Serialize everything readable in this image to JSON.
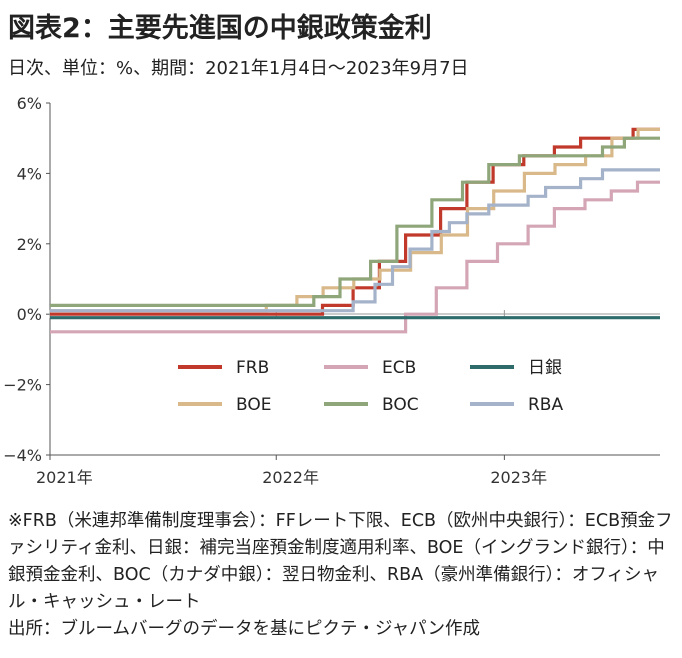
{
  "header": {
    "title": "図表2：主要先進国の中銀政策金利",
    "subtitle": "日次、単位：%、期間：2021年1月4日～2023年9月7日"
  },
  "chart_data": {
    "type": "line",
    "x_range": [
      "2021-01-04",
      "2023-09-07"
    ],
    "ylim": [
      -4,
      6
    ],
    "y_ticks": [
      "6%",
      "4%",
      "2%",
      "0%",
      "−2%",
      "−4%"
    ],
    "x_ticks": [
      "2021年",
      "2022年",
      "2023年"
    ],
    "grid": false,
    "legend_position": "center",
    "series": [
      {
        "name": "FRB",
        "color": "#c0392b",
        "points": [
          [
            "2021-01-04",
            0.0
          ],
          [
            "2022-03-16",
            0.25
          ],
          [
            "2022-05-04",
            0.75
          ],
          [
            "2022-06-15",
            1.5
          ],
          [
            "2022-07-27",
            2.25
          ],
          [
            "2022-09-21",
            3.0
          ],
          [
            "2022-11-02",
            3.75
          ],
          [
            "2022-12-14",
            4.25
          ],
          [
            "2023-02-01",
            4.5
          ],
          [
            "2023-03-22",
            4.75
          ],
          [
            "2023-05-03",
            5.0
          ],
          [
            "2023-07-26",
            5.25
          ],
          [
            "2023-09-07",
            5.25
          ]
        ]
      },
      {
        "name": "ECB",
        "color": "#d4a5b5",
        "points": [
          [
            "2021-01-04",
            -0.5
          ],
          [
            "2022-07-27",
            0.0
          ],
          [
            "2022-09-14",
            0.75
          ],
          [
            "2022-11-02",
            1.5
          ],
          [
            "2022-12-21",
            2.0
          ],
          [
            "2023-02-08",
            2.5
          ],
          [
            "2023-03-22",
            3.0
          ],
          [
            "2023-05-10",
            3.25
          ],
          [
            "2023-06-21",
            3.5
          ],
          [
            "2023-08-02",
            3.75
          ],
          [
            "2023-09-07",
            3.75
          ]
        ]
      },
      {
        "name": "日銀",
        "color": "#2e6b6b",
        "points": [
          [
            "2021-01-04",
            -0.1
          ],
          [
            "2023-09-07",
            -0.1
          ]
        ]
      },
      {
        "name": "BOE",
        "color": "#d9b98a",
        "points": [
          [
            "2021-01-04",
            0.1
          ],
          [
            "2021-12-16",
            0.25
          ],
          [
            "2022-02-03",
            0.5
          ],
          [
            "2022-03-17",
            0.75
          ],
          [
            "2022-05-05",
            1.0
          ],
          [
            "2022-06-16",
            1.25
          ],
          [
            "2022-08-04",
            1.75
          ],
          [
            "2022-09-22",
            2.25
          ],
          [
            "2022-11-03",
            3.0
          ],
          [
            "2022-12-15",
            3.5
          ],
          [
            "2023-02-02",
            4.0
          ],
          [
            "2023-03-23",
            4.25
          ],
          [
            "2023-05-11",
            4.5
          ],
          [
            "2023-06-22",
            5.0
          ],
          [
            "2023-08-03",
            5.25
          ],
          [
            "2023-09-07",
            5.25
          ]
        ]
      },
      {
        "name": "BOC",
        "color": "#8fa67a",
        "points": [
          [
            "2021-01-04",
            0.25
          ],
          [
            "2022-03-02",
            0.5
          ],
          [
            "2022-04-13",
            1.0
          ],
          [
            "2022-06-01",
            1.5
          ],
          [
            "2022-07-13",
            2.5
          ],
          [
            "2022-09-07",
            3.25
          ],
          [
            "2022-10-26",
            3.75
          ],
          [
            "2022-12-07",
            4.25
          ],
          [
            "2023-01-25",
            4.5
          ],
          [
            "2023-06-07",
            4.75
          ],
          [
            "2023-07-12",
            5.0
          ],
          [
            "2023-09-07",
            5.0
          ]
        ]
      },
      {
        "name": "RBA",
        "color": "#a4b3c9",
        "points": [
          [
            "2021-01-04",
            0.1
          ],
          [
            "2022-05-04",
            0.35
          ],
          [
            "2022-06-08",
            0.85
          ],
          [
            "2022-07-06",
            1.35
          ],
          [
            "2022-08-03",
            1.85
          ],
          [
            "2022-09-07",
            2.35
          ],
          [
            "2022-10-05",
            2.6
          ],
          [
            "2022-11-02",
            2.85
          ],
          [
            "2022-12-07",
            3.1
          ],
          [
            "2023-02-08",
            3.35
          ],
          [
            "2023-03-08",
            3.6
          ],
          [
            "2023-05-03",
            3.85
          ],
          [
            "2023-06-07",
            4.1
          ],
          [
            "2023-09-07",
            4.1
          ]
        ]
      }
    ]
  },
  "notes": {
    "line1": "※FRB（米連邦準備制度理事会）：FFレート下限、ECB（欧州中央銀行）：ECB預金ファシリティ金利、日銀：補完当座預金制度適用利率、BOE（イングランド銀行）：中銀預金金利、BOC（カナダ中銀）：翌日物金利、RBA（豪州準備銀行）：オフィシャル・キャッシュ・レート",
    "line2": "出所：ブルームバーグのデータを基にピクテ・ジャパン作成"
  }
}
